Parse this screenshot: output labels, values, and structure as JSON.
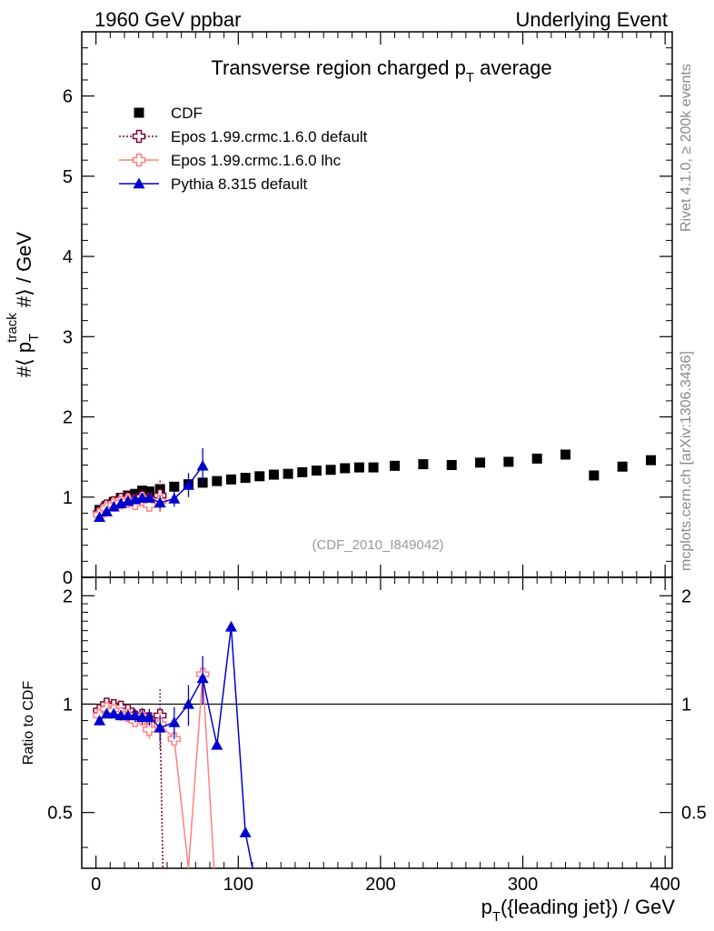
{
  "header": {
    "left": "1960 GeV ppbar",
    "right": "Underlying Event"
  },
  "side_labels": {
    "rivet": "Rivet 4.1.0, ≥ 200k events",
    "mcplots": "mcplots.cern.ch [arXiv:1306.3436]"
  },
  "chart_data": {
    "type": "scatter",
    "title": "Transverse region charged pT average",
    "title_main": "Transverse region charged p",
    "title_sub": "T",
    "title_end": " average",
    "analysis_id": "(CDF_2010_I849042)",
    "ylabel_top": "#⟨ p_T^track #⟩ / GeV",
    "ylabel_bottom": "Ratio to CDF",
    "xlabel": "p_T({leading jet}) / GeV",
    "xlim": [
      -10,
      405
    ],
    "ylim_top": [
      0,
      6.8
    ],
    "ylim_ratio": [
      0.35,
      2.25
    ],
    "x_ticks": [
      "0",
      "100",
      "200",
      "300",
      "400"
    ],
    "x_tick_values": [
      0,
      100,
      200,
      300,
      400
    ],
    "y_ticks_top": [
      "0",
      "1",
      "2",
      "3",
      "4",
      "5",
      "6"
    ],
    "y_tick_values_top": [
      0,
      1,
      2,
      3,
      4,
      5,
      6
    ],
    "y_ticks_ratio": [
      "0.5",
      "1",
      "2"
    ],
    "y_tick_values_ratio": [
      0.5,
      1,
      2
    ],
    "legend": [
      "CDF",
      "Epos 1.99.crmc.1.6.0 default",
      "Epos 1.99.crmc.1.6.0 lhc",
      "Pythia 8.315 default"
    ],
    "series": [
      {
        "name": "CDF",
        "color": "#000000",
        "marker": "square",
        "x": [
          2.5,
          7.5,
          12.5,
          17.5,
          22.5,
          27.5,
          32.5,
          37.5,
          45,
          55,
          65,
          75,
          85,
          95,
          105,
          115,
          125,
          135,
          145,
          155,
          165,
          175,
          185,
          195,
          210,
          230,
          250,
          270,
          290,
          310,
          330,
          350,
          370,
          390
        ],
        "y": [
          0.84,
          0.89,
          0.94,
          0.99,
          1.02,
          1.04,
          1.08,
          1.07,
          1.1,
          1.13,
          1.16,
          1.18,
          1.2,
          1.22,
          1.24,
          1.26,
          1.28,
          1.29,
          1.31,
          1.33,
          1.34,
          1.36,
          1.37,
          1.37,
          1.39,
          1.41,
          1.4,
          1.43,
          1.44,
          1.48,
          1.53,
          1.27,
          1.38,
          1.46
        ]
      },
      {
        "name": "Epos 1.99.crmc.1.6.0 default",
        "color": "#800033",
        "marker": "cross",
        "x": [
          2.5,
          7.5,
          12.5,
          17.5,
          22.5,
          27.5,
          32.5,
          37.5,
          45
        ],
        "y": [
          0.8,
          0.89,
          0.93,
          0.97,
          0.98,
          0.96,
          1.0,
          0.97,
          1.02
        ],
        "err": [
          0.02,
          0.02,
          0.02,
          0.03,
          0.03,
          0.04,
          0.05,
          0.07,
          0.2
        ],
        "ratio": [
          0.96,
          1.0,
          0.99,
          0.98,
          0.96,
          0.92,
          0.93,
          0.91,
          0.93
        ],
        "ratio_err": [
          0.02,
          0.02,
          0.02,
          0.03,
          0.03,
          0.04,
          0.05,
          0.06,
          0.18
        ],
        "ratio_tail": [
          [
            47,
            0.35
          ]
        ]
      },
      {
        "name": "Epos 1.99.crmc.1.6.0 lhc",
        "color": "#ff8080",
        "marker": "cross",
        "x": [
          2.5,
          7.5,
          12.5,
          17.5,
          22.5,
          27.5,
          32.5,
          37.5,
          45
        ],
        "y": [
          0.78,
          0.86,
          0.9,
          0.93,
          0.95,
          0.92,
          0.97,
          0.9,
          0.95
        ],
        "err": [
          0.02,
          0.02,
          0.02,
          0.02,
          0.03,
          0.03,
          0.04,
          0.05,
          0.08
        ],
        "ratio": [
          0.93,
          0.97,
          0.96,
          0.94,
          0.93,
          0.9,
          0.91,
          0.85,
          0.88
        ],
        "ratio_err": [
          0.02,
          0.02,
          0.02,
          0.02,
          0.03,
          0.03,
          0.04,
          0.05,
          0.07
        ],
        "ratio_tail": [
          [
            55,
            0.8
          ],
          [
            65,
            0.35
          ],
          [
            75,
            1.21
          ],
          [
            83,
            0.35
          ]
        ]
      },
      {
        "name": "Pythia 8.315 default",
        "color": "#0000cc",
        "marker": "triangle",
        "x": [
          2.5,
          7.5,
          12.5,
          17.5,
          22.5,
          27.5,
          32.5,
          37.5,
          45,
          55,
          65,
          75
        ],
        "y": [
          0.75,
          0.82,
          0.88,
          0.92,
          0.95,
          0.97,
          0.99,
          0.99,
          0.93,
          0.98,
          1.15,
          1.39
        ],
        "err": [
          0.02,
          0.02,
          0.02,
          0.03,
          0.03,
          0.04,
          0.04,
          0.05,
          0.08,
          0.1,
          0.15,
          0.22
        ],
        "ratio": [
          0.9,
          0.94,
          0.94,
          0.93,
          0.93,
          0.93,
          0.92,
          0.92,
          0.86,
          0.89,
          1.0,
          1.18
        ],
        "ratio_err": [
          0.02,
          0.02,
          0.02,
          0.03,
          0.03,
          0.04,
          0.04,
          0.05,
          0.07,
          0.09,
          0.13,
          0.18
        ],
        "ratio_tail": [
          [
            85,
            0.77
          ],
          [
            95,
            1.64
          ],
          [
            105,
            0.44
          ],
          [
            110,
            0.35
          ]
        ]
      }
    ]
  }
}
